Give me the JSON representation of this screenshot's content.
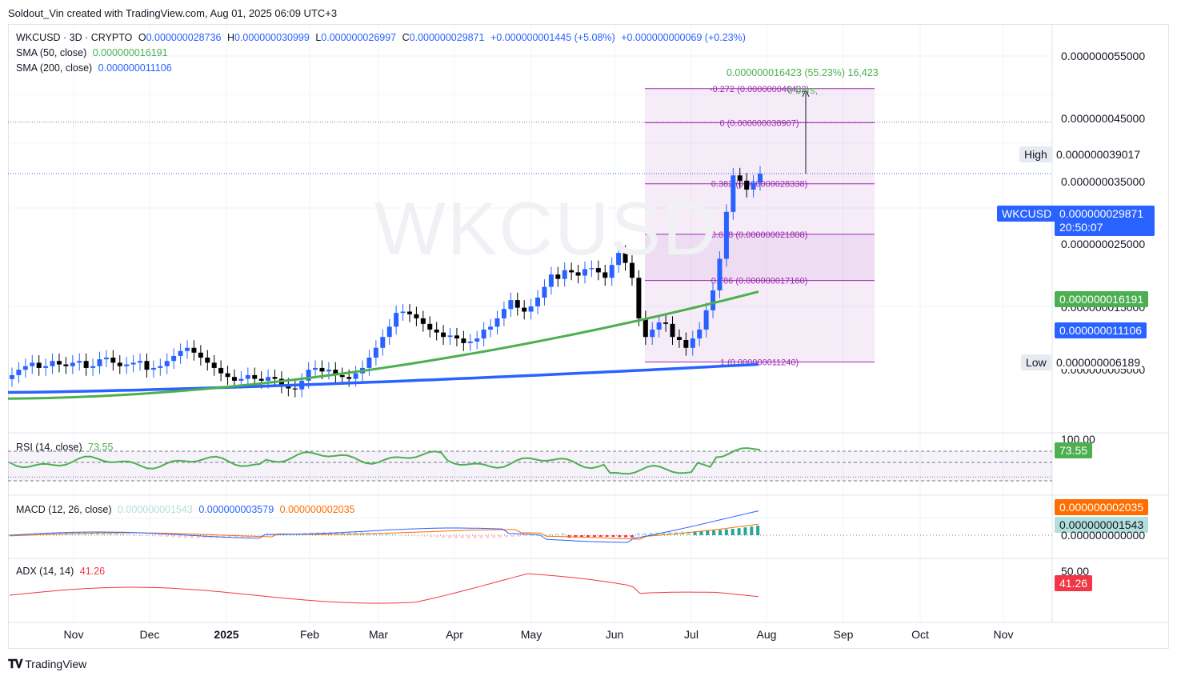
{
  "header": {
    "credit": "Soldout_Vin created with TradingView.com, Aug 01, 2025 06:09 UTC+3"
  },
  "legend": {
    "symbol": "WKCUSD · 3D · CRYPTO",
    "open_label": "O",
    "open": "0.000000028736",
    "high_label": "H",
    "high": "0.000000030999",
    "low_label": "L",
    "low": "0.000000026997",
    "close_label": "C",
    "close": "0.000000029871",
    "change": "+0.000000001445 (+5.08%)",
    "change2": "+0.000000000069 (+0.23%)",
    "sma50_label": "SMA (50, close)",
    "sma50_value": "0.000000016191",
    "sma200_label": "SMA (200, close)",
    "sma200_value": "0.000000011106"
  },
  "watermark": "WKCUSD",
  "measure": {
    "text": "0.000000016423 (55.23%) 16,423",
    "bars": "0 bars,"
  },
  "fib": {
    "levels": [
      {
        "label": "-0.272 (0.000000046432)",
        "price": 4.6432e-08
      },
      {
        "label": "0 (0.000000038907)",
        "price": 3.8907e-08
      },
      {
        "label": "0.382 (0.000000028338)",
        "price": 2.8338e-08
      },
      {
        "label": "0.618 (0.000000021808)",
        "price": 2.1808e-08
      },
      {
        "label": "0.786 (0.000000017160)",
        "price": 1.716e-08
      },
      {
        "label": "1 (0.000000011240)",
        "price": 1.124e-08
      }
    ]
  },
  "price_axis": {
    "ticks": [
      "0.000000055000",
      "0.000000045000",
      "0.000000035000",
      "0.000000025000",
      "0.000000015000",
      "0.000000005000"
    ],
    "high_label": "High",
    "high_value": "0.000000039017",
    "low_label": "Low",
    "low_value": "0.000000006189",
    "last_symbol": "WKCUSD",
    "last_value": "0.000000029871",
    "countdown": "20:50:07",
    "sma50_tag": "0.000000016191",
    "sma200_tag": "0.000000011106"
  },
  "time_axis": {
    "labels": [
      "Nov",
      "Dec",
      "2025",
      "Feb",
      "Mar",
      "Apr",
      "May",
      "Jun",
      "Jul",
      "Aug",
      "Sep",
      "Oct",
      "Nov"
    ]
  },
  "rsi": {
    "label": "RSI (14, close)",
    "value": "73.55",
    "axis_top": "100.00"
  },
  "macd": {
    "label": "MACD (12, 26, close)",
    "hist": "0.000000001543",
    "macd": "0.000000003579",
    "signal": "0.000000002035",
    "axis_zero": "0.000000000000"
  },
  "adx": {
    "label": "ADX (14, 14)",
    "value": "41.26",
    "axis_top": "50.00"
  },
  "footer": {
    "brand": "TradingView"
  },
  "colors": {
    "up": "#2962ff",
    "down": "#000000",
    "sma50": "#4caf50",
    "sma200": "#2962ff",
    "fib": "#9c27b0",
    "rsi": "#4caf50",
    "macd": "#2962ff",
    "signal": "#ff6d00",
    "adx": "#f23645"
  },
  "chart_data": {
    "type": "candlestick",
    "title": "WKCUSD · 3D · CRYPTO",
    "y_scale": "log",
    "ylim": [
      5e-09,
      5.5e-08
    ],
    "x": [
      "Nov",
      "Dec",
      "2025",
      "Feb",
      "Mar",
      "Apr",
      "May",
      "Jun",
      "Jul",
      "Aug",
      "Sep",
      "Oct",
      "Nov"
    ],
    "candles_close": [
      1.05e-08,
      1.08e-08,
      1.1e-08,
      1.12e-08,
      1.09e-08,
      1.1e-08,
      1.13e-08,
      1.11e-08,
      1.1e-08,
      1.12e-08,
      1.13e-08,
      1.09e-08,
      1.1e-08,
      1.14e-08,
      1.15e-08,
      1.12e-08,
      1.1e-08,
      1.11e-08,
      1.12e-08,
      1.13e-08,
      1.08e-08,
      1.09e-08,
      1.1e-08,
      1.13e-08,
      1.16e-08,
      1.19e-08,
      1.21e-08,
      1.18e-08,
      1.15e-08,
      1.12e-08,
      1.09e-08,
      1.06e-08,
      1.04e-08,
      1.02e-08,
      1.03e-08,
      1.05e-08,
      1.03e-08,
      1.02e-08,
      1.04e-08,
      1.03e-08,
      9.95e-09,
      9.8e-09,
      9.75e-09,
      1.02e-08,
      1.08e-08,
      1.09e-08,
      1.07e-08,
      1.08e-08,
      1.05e-08,
      1.04e-08,
      1.03e-08,
      1.06e-08,
      1.09e-08,
      1.15e-08,
      1.21e-08,
      1.28e-08,
      1.35e-08,
      1.45e-08,
      1.46e-08,
      1.44e-08,
      1.41e-08,
      1.37e-08,
      1.33e-08,
      1.31e-08,
      1.28e-08,
      1.29e-08,
      1.27e-08,
      1.24e-08,
      1.25e-08,
      1.27e-08,
      1.33e-08,
      1.35e-08,
      1.41e-08,
      1.48e-08,
      1.55e-08,
      1.49e-08,
      1.46e-08,
      1.5e-08,
      1.57e-08,
      1.66e-08,
      1.77e-08,
      1.73e-08,
      1.81e-08,
      1.79e-08,
      1.76e-08,
      1.82e-08,
      1.83e-08,
      1.79e-08,
      1.74e-08,
      1.86e-08,
      1.98e-08,
      1.88e-08,
      1.74e-08,
      1.41e-08,
      1.28e-08,
      1.33e-08,
      1.38e-08,
      1.37e-08,
      1.28e-08,
      1.26e-08,
      1.21e-08,
      1.27e-08,
      1.33e-08,
      1.47e-08,
      1.63e-08,
      1.92e-08,
      2.45e-08,
      2.96e-08,
      2.88e-08,
      2.75e-08,
      2.85e-08,
      2.9871e-08
    ],
    "sma50_last": 1.6191e-08,
    "sma200_last": 1.1106e-08
  }
}
